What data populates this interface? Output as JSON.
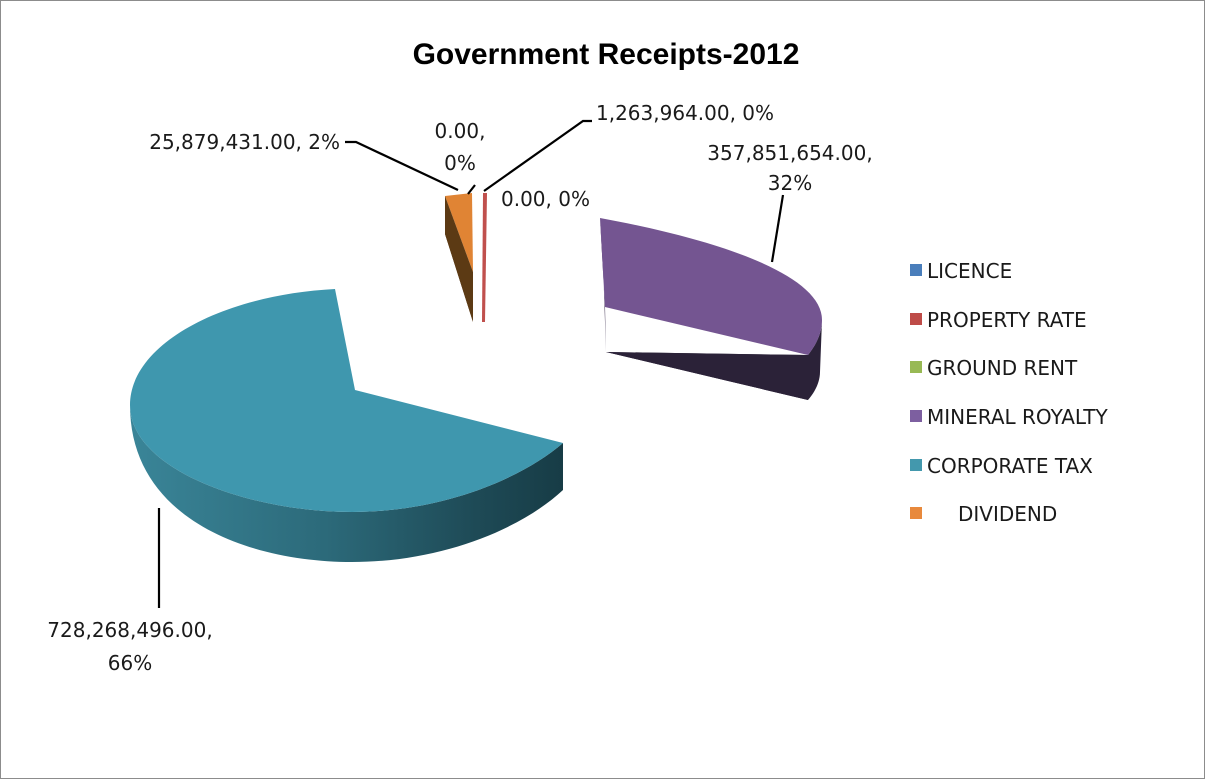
{
  "chart_data": {
    "type": "pie",
    "title": "Government Receipts-2012",
    "legend_position": "right",
    "series": [
      {
        "name": "LICENCE",
        "value": 0.0,
        "label": "0.00, 0%",
        "color": "#4a7ebb"
      },
      {
        "name": "PROPERTY RATE",
        "value": 1263964.0,
        "label": "1,263,964.00, 0%",
        "color": "#be4b48"
      },
      {
        "name": "GROUND RENT",
        "value": 0.0,
        "label": "0.00, 0%",
        "color": "#98b954"
      },
      {
        "name": "MINERAL ROYALTY",
        "value": 357851654.0,
        "label": "357,851,654.00, 32%",
        "color": "#7d5fa0"
      },
      {
        "name": "CORPORATE TAX",
        "value": 728268496.0,
        "label": "728,268,496.00, 66%",
        "color": "#4398ad"
      },
      {
        "name": "DIVIDEND",
        "value": 25879431.0,
        "label": "25,879,431.00, 2%",
        "color": "#e8893c"
      }
    ],
    "labels": {
      "licence_line1": "0.00,",
      "licence_line2": "0%",
      "property_rate": "1,263,964.00, 0%",
      "ground_rent": "0.00, 0%",
      "mineral_line1": "357,851,654.00,",
      "mineral_line2": "32%",
      "corporate_line1": "728,268,496.00,",
      "corporate_line2": "66%",
      "dividend": "25,879,431.00, 2%"
    },
    "legend": [
      "LICENCE",
      "PROPERTY RATE",
      "GROUND RENT",
      "MINERAL ROYALTY",
      "CORPORATE TAX",
      "DIVIDEND"
    ]
  }
}
